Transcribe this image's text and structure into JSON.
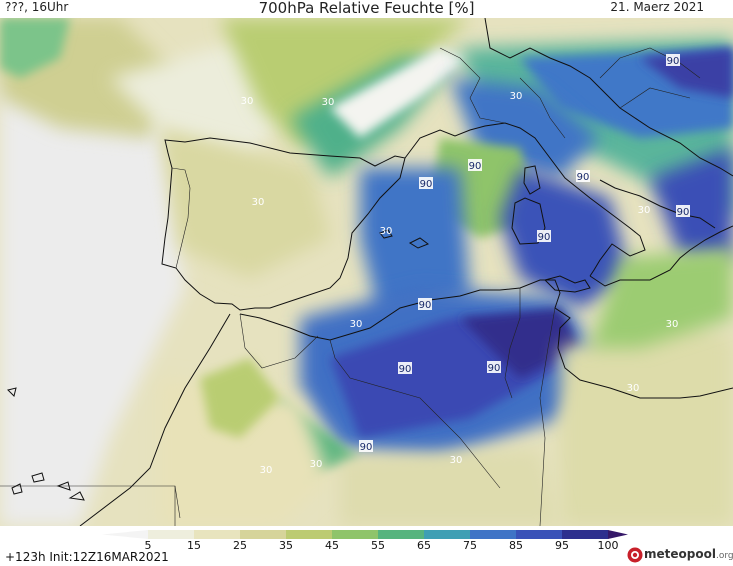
{
  "header": {
    "left": "???, 16Uhr",
    "title": "700hPa Relative Feuchte [%]",
    "date": "21. Maerz 2021"
  },
  "footer": {
    "init": "+123h  Init:12Z16MAR2021",
    "logo_main": "meteopool",
    "logo_tld": ".org"
  },
  "colorbar": {
    "ticks": [
      "5",
      "15",
      "25",
      "35",
      "45",
      "55",
      "65",
      "75",
      "85",
      "95",
      "100"
    ],
    "colors": [
      "#f4f4f4",
      "#eeeedd",
      "#e8e4be",
      "#d6d49a",
      "#bccb72",
      "#8fc46a",
      "#57b47e",
      "#3f9fb4",
      "#3f74c6",
      "#3a52b8",
      "#2d2f8e",
      "#351868"
    ]
  },
  "map": {
    "contour_labels": [
      "30",
      "30",
      "30",
      "30",
      "30",
      "30",
      "30",
      "30",
      "30",
      "30",
      "30",
      "30",
      "90",
      "90",
      "90",
      "90",
      "90",
      "90",
      "90",
      "90",
      "90",
      "90"
    ]
  }
}
